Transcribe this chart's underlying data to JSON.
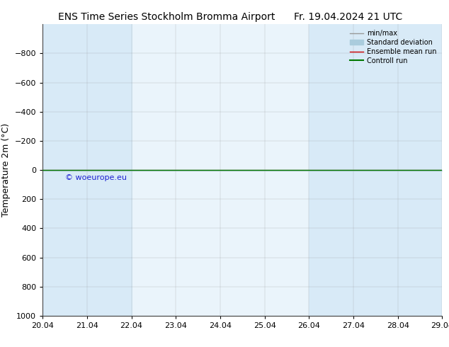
{
  "title_left": "ENS Time Series Stockholm Bromma Airport",
  "title_right": "Fr. 19.04.2024 21 UTC",
  "ylabel": "Temperature 2m (°C)",
  "watermark": "© woeurope.eu",
  "xlim_min": 0,
  "xlim_max": 9,
  "ymin": -1000,
  "ymax": 1000,
  "yticks": [
    -800,
    -600,
    -400,
    -200,
    0,
    200,
    400,
    600,
    800,
    1000
  ],
  "xtick_labels": [
    "20.04",
    "21.04",
    "22.04",
    "23.04",
    "24.04",
    "25.04",
    "26.04",
    "27.04",
    "28.04",
    "29.04"
  ],
  "shaded_bands": [
    [
      0,
      1
    ],
    [
      1,
      2
    ],
    [
      6,
      7
    ],
    [
      7,
      8
    ],
    [
      8,
      9
    ]
  ],
  "shaded_color": "#d8eaf7",
  "background_color": "#ffffff",
  "plot_bg_color": "#eaf4fb",
  "minmax_color": "#999999",
  "std_color": "#aaccdd",
  "ensemble_mean_color": "#cc0000",
  "control_run_color": "#007700",
  "line_y": 0,
  "legend_labels": [
    "min/max",
    "Standard deviation",
    "Ensemble mean run",
    "Controll run"
  ],
  "title_fontsize": 10,
  "tick_fontsize": 8,
  "ylabel_fontsize": 9,
  "watermark_color": "#0000cc"
}
